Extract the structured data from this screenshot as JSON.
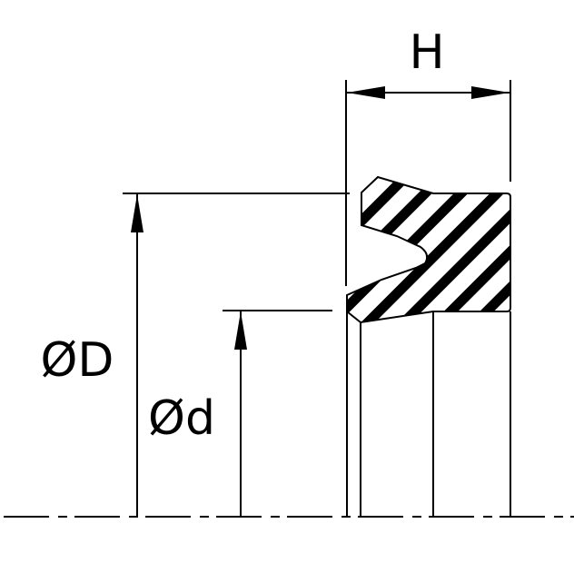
{
  "labels": {
    "height": "H",
    "outer_diameter": "ØD",
    "inner_diameter": "Ød"
  },
  "colors": {
    "line": "#000000",
    "background": "#ffffff"
  }
}
